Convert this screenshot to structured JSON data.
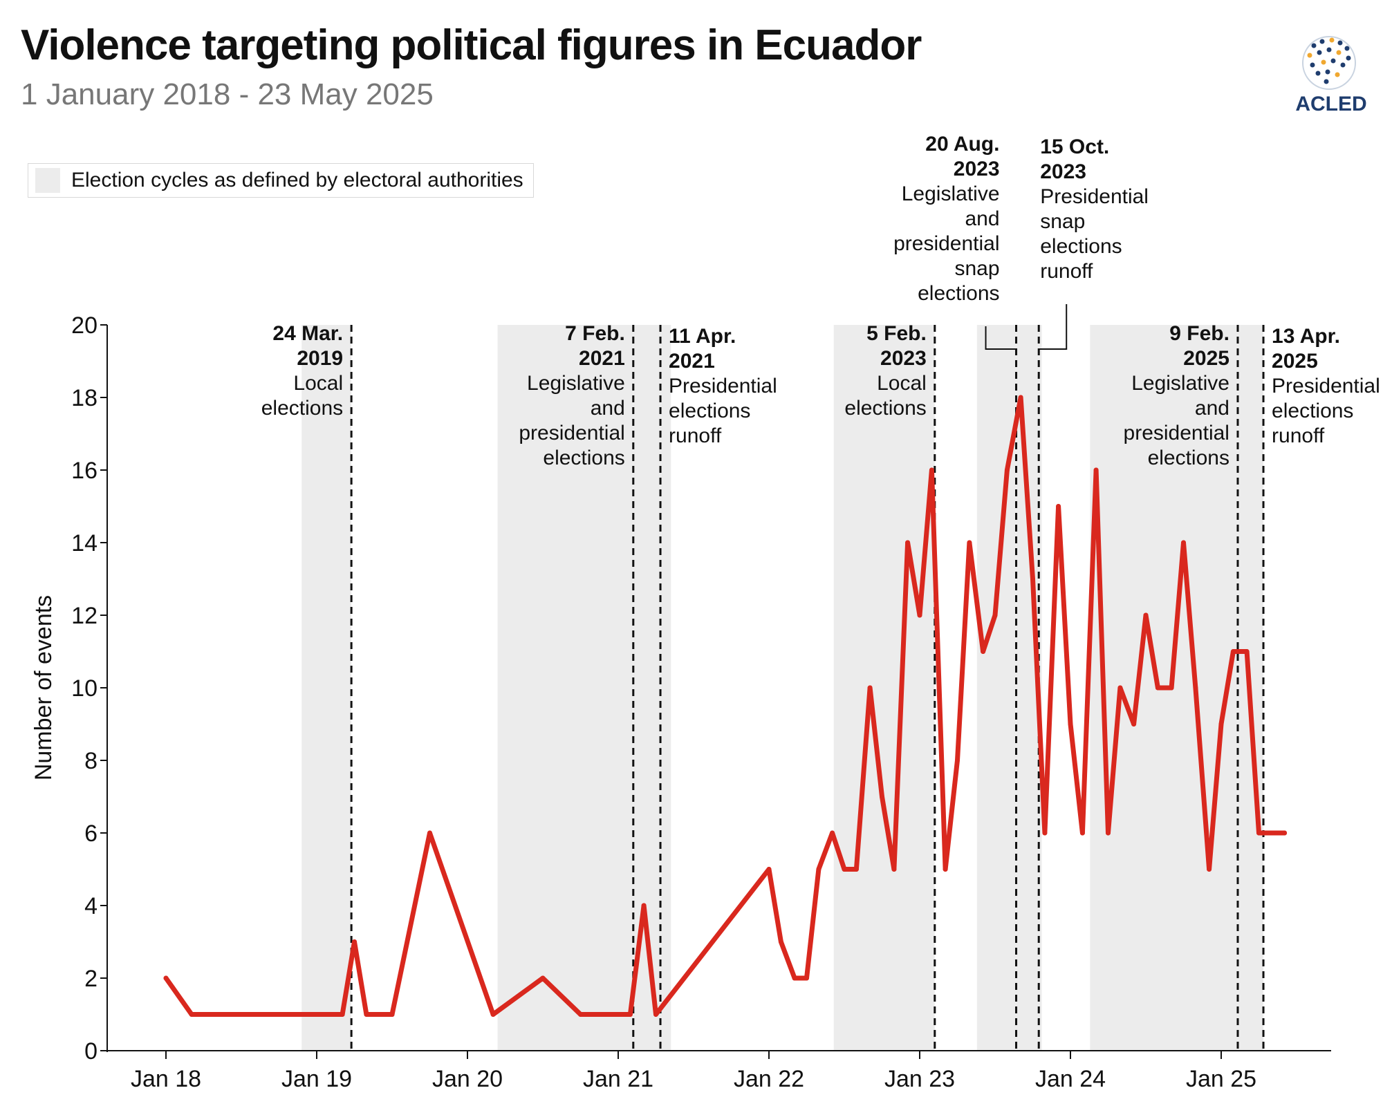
{
  "title": "Violence targeting political figures in Ecuador",
  "subtitle": "1 January 2018 - 23 May 2025",
  "logo_text": "ACLED",
  "legend_label": "Election cycles as defined by electoral authorities",
  "colors": {
    "line": "#d9281e",
    "shade": "#ececec",
    "axis": "#111111",
    "accent": "#1f3d6e",
    "accent2": "#f0a830"
  },
  "chart_data": {
    "type": "line",
    "title": "Violence targeting political figures in Ecuador",
    "subtitle": "1 January 2018 - 23 May 2025",
    "xlabel": "",
    "ylabel": "Number of events",
    "xlim": [
      -0.375,
      7.75
    ],
    "ylim": [
      0,
      20
    ],
    "x_ticks": [
      {
        "value": 0,
        "label": "Jan 18"
      },
      {
        "value": 1,
        "label": "Jan 19"
      },
      {
        "value": 2,
        "label": "Jan 20"
      },
      {
        "value": 3,
        "label": "Jan 21"
      },
      {
        "value": 4,
        "label": "Jan 22"
      },
      {
        "value": 5,
        "label": "Jan 23"
      },
      {
        "value": 6,
        "label": "Jan 24"
      },
      {
        "value": 7,
        "label": "Jan 25"
      }
    ],
    "y_ticks": [
      0,
      2,
      4,
      6,
      8,
      10,
      12,
      14,
      16,
      18,
      20
    ],
    "grid": false,
    "legend": "top-left",
    "series": [
      {
        "name": "Events",
        "x": [
          0.0,
          0.17,
          1.17,
          1.25,
          1.33,
          1.5,
          1.75,
          2.17,
          2.5,
          2.75,
          3.08,
          3.17,
          3.25,
          4.0,
          4.08,
          4.17,
          4.25,
          4.33,
          4.42,
          4.5,
          4.58,
          4.67,
          4.75,
          4.83,
          4.92,
          5.0,
          5.08,
          5.17,
          5.25,
          5.33,
          5.42,
          5.5,
          5.58,
          5.67,
          5.75,
          5.83,
          5.92,
          6.0,
          6.08,
          6.17,
          6.25,
          6.33,
          6.42,
          6.5,
          6.58,
          6.67,
          6.75,
          6.83,
          6.92,
          7.0,
          7.08,
          7.17,
          7.25,
          7.33,
          7.42
        ],
        "values": [
          2,
          1,
          1,
          3,
          1,
          1,
          6,
          1,
          2,
          1,
          1,
          4,
          1,
          5,
          3,
          2,
          2,
          5,
          6,
          5,
          5,
          10,
          7,
          5,
          14,
          12,
          16,
          5,
          8,
          14,
          11,
          12,
          16,
          18,
          13,
          6,
          15,
          9,
          6,
          16,
          6,
          10,
          9,
          12,
          10,
          10,
          14,
          10,
          5,
          9,
          11,
          11,
          6,
          6,
          6
        ]
      }
    ],
    "shaded_periods": [
      {
        "start": 0.9,
        "end": 1.23
      },
      {
        "start": 2.2,
        "end": 3.35
      },
      {
        "start": 4.43,
        "end": 5.1
      },
      {
        "start": 5.38,
        "end": 5.81
      },
      {
        "start": 6.13,
        "end": 7.28
      }
    ],
    "events": [
      {
        "x": 1.23,
        "date": "24 Mar.",
        "year": "2019",
        "desc": [
          "Local",
          "elections"
        ],
        "side": "left"
      },
      {
        "x": 3.1,
        "date": "7 Feb.",
        "year": "2021",
        "desc": [
          "Legislative",
          "and",
          "presidential",
          "elections"
        ],
        "side": "left"
      },
      {
        "x": 3.28,
        "date": "11 Apr.",
        "year": "2021",
        "desc": [
          "Presidential",
          "elections",
          "runoff"
        ],
        "side": "right"
      },
      {
        "x": 5.1,
        "date": "5 Feb.",
        "year": "2023",
        "desc": [
          "Local",
          "elections"
        ],
        "side": "left"
      },
      {
        "x": 5.64,
        "date": "20 Aug.",
        "year": "2023",
        "desc": [
          "Legislative",
          "and",
          "presidential",
          "snap",
          "elections"
        ],
        "side": "left-elbow"
      },
      {
        "x": 5.79,
        "date": "15 Oct.",
        "year": "2023",
        "desc": [
          "Presidential",
          "snap",
          "elections",
          "runoff"
        ],
        "side": "right-elbow"
      },
      {
        "x": 7.11,
        "date": "9 Feb.",
        "year": "2025",
        "desc": [
          "Legislative",
          "and",
          "presidential",
          "elections"
        ],
        "side": "left"
      },
      {
        "x": 7.28,
        "date": "13 Apr.",
        "year": "2025",
        "desc": [
          "Presidential",
          "elections",
          "runoff"
        ],
        "side": "right"
      }
    ]
  }
}
